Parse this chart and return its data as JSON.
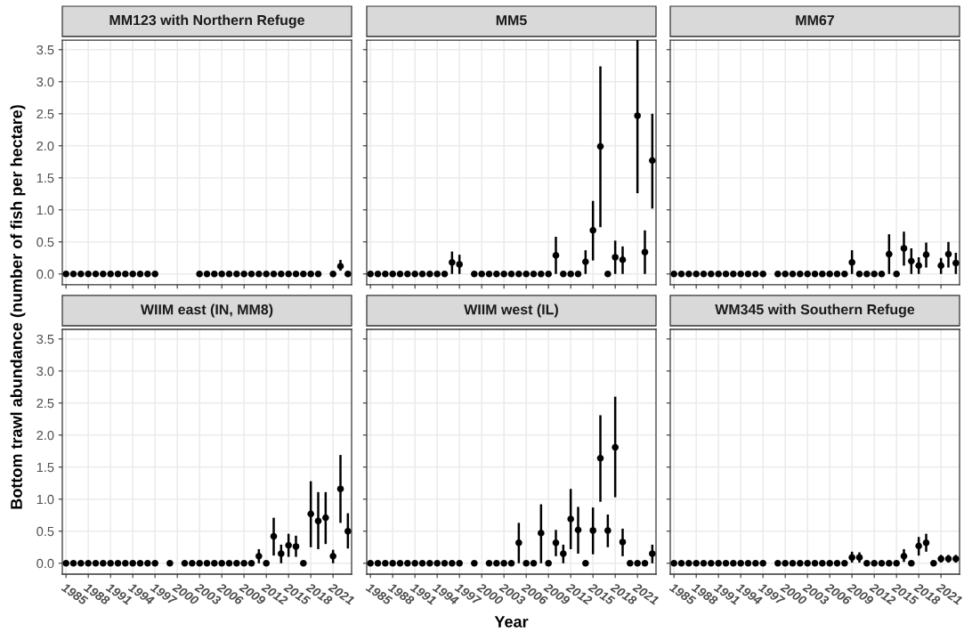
{
  "chart_data": [
    {
      "type": "scatter",
      "title": "MM123 with Northern Refuge",
      "ylabel": "Bottom trawl abundance (number of fish per hectare)",
      "marker": "circle",
      "grid": true,
      "tick_labels": "y",
      "xlim": [
        1984.5,
        2023.5
      ],
      "ylim": [
        -0.17,
        3.65
      ],
      "xticks": [
        1985,
        1988,
        1991,
        1994,
        1997,
        2000,
        2003,
        2006,
        2009,
        2012,
        2015,
        2018,
        2021
      ],
      "yticks": [
        {
          "value": 0,
          "label": "0.0"
        },
        {
          "value": 0.5,
          "label": "0.5"
        },
        {
          "value": 1,
          "label": "1.0"
        },
        {
          "value": 1.5,
          "label": "1.5"
        },
        {
          "value": 2,
          "label": "2.0"
        },
        {
          "value": 2.5,
          "label": "2.5"
        },
        {
          "value": 3,
          "label": "3.0"
        },
        {
          "value": 3.5,
          "label": "3.5"
        }
      ],
      "series": [
        {
          "color": "#000000",
          "x": [
            1985,
            1986,
            1987,
            1988,
            1989,
            1990,
            1991,
            1992,
            1993,
            1994,
            1995,
            1996,
            1997,
            2003,
            2004,
            2005,
            2006,
            2007,
            2008,
            2009,
            2010,
            2011,
            2012,
            2013,
            2014,
            2015,
            2016,
            2017,
            2018,
            2019,
            2021,
            2022,
            2023
          ],
          "values": [
            0,
            0,
            0,
            0,
            0,
            0,
            0,
            0,
            0,
            0,
            0,
            0,
            0,
            0,
            0,
            0,
            0,
            0,
            0,
            0,
            0,
            0,
            0,
            0,
            0,
            0,
            0,
            0,
            0,
            0,
            0,
            0.12,
            0
          ],
          "errors": [
            null,
            null,
            null,
            null,
            null,
            null,
            null,
            null,
            null,
            null,
            null,
            null,
            null,
            null,
            null,
            null,
            null,
            null,
            null,
            null,
            null,
            null,
            null,
            null,
            null,
            null,
            null,
            null,
            null,
            null,
            null,
            [
              0.05,
              0.22
            ],
            null
          ]
        }
      ]
    },
    {
      "type": "scatter",
      "title": "MM5",
      "marker": "circle",
      "grid": true,
      "tick_labels": false,
      "xlim": [
        1984.5,
        2023.5
      ],
      "ylim": [
        -0.17,
        3.65
      ],
      "xticks": [
        1985,
        1988,
        1991,
        1994,
        1997,
        2000,
        2003,
        2006,
        2009,
        2012,
        2015,
        2018,
        2021
      ],
      "yticks": [
        0,
        0.5,
        1,
        1.5,
        2,
        2.5,
        3,
        3.5
      ],
      "series": [
        {
          "color": "#000000",
          "x": [
            1985,
            1986,
            1987,
            1988,
            1989,
            1990,
            1991,
            1992,
            1993,
            1994,
            1995,
            1996,
            1997,
            1999,
            2000,
            2001,
            2002,
            2003,
            2004,
            2005,
            2006,
            2007,
            2008,
            2009,
            2010,
            2011,
            2012,
            2013,
            2014,
            2015,
            2016,
            2017,
            2018,
            2019,
            2021,
            2022,
            2023
          ],
          "values": [
            0,
            0,
            0,
            0,
            0,
            0,
            0,
            0,
            0,
            0,
            0,
            0.18,
            0.15,
            0,
            0,
            0,
            0,
            0,
            0,
            0,
            0,
            0,
            0,
            0,
            0.29,
            0,
            0,
            0,
            0.19,
            0.68,
            1.99,
            0,
            0.26,
            0.22,
            2.47,
            0.34,
            1.77
          ],
          "errors": [
            null,
            null,
            null,
            null,
            null,
            null,
            null,
            null,
            null,
            null,
            null,
            [
              0,
              0.35
            ],
            [
              0,
              0.3
            ],
            null,
            null,
            null,
            null,
            null,
            null,
            null,
            null,
            null,
            null,
            null,
            [
              0,
              0.58
            ],
            null,
            null,
            null,
            [
              0,
              0.37
            ],
            [
              0.21,
              1.14
            ],
            [
              0.73,
              3.24
            ],
            null,
            [
              0,
              0.52
            ],
            [
              0,
              0.43
            ],
            [
              1.26,
              3.66
            ],
            [
              0,
              0.68
            ],
            [
              1.02,
              2.5
            ]
          ]
        }
      ]
    },
    {
      "type": "scatter",
      "title": "MM67",
      "marker": "circle",
      "grid": true,
      "tick_labels": false,
      "xlim": [
        1984.5,
        2023.5
      ],
      "ylim": [
        -0.17,
        3.65
      ],
      "xticks": [
        1985,
        1988,
        1991,
        1994,
        1997,
        2000,
        2003,
        2006,
        2009,
        2012,
        2015,
        2018,
        2021
      ],
      "yticks": [
        0,
        0.5,
        1,
        1.5,
        2,
        2.5,
        3,
        3.5
      ],
      "series": [
        {
          "color": "#000000",
          "x": [
            1985,
            1986,
            1987,
            1988,
            1989,
            1990,
            1991,
            1992,
            1993,
            1994,
            1995,
            1996,
            1997,
            1999,
            2000,
            2001,
            2002,
            2003,
            2004,
            2005,
            2006,
            2007,
            2008,
            2009,
            2010,
            2011,
            2012,
            2013,
            2014,
            2015,
            2016,
            2017,
            2018,
            2019,
            2021,
            2022,
            2023
          ],
          "values": [
            0,
            0,
            0,
            0,
            0,
            0,
            0,
            0,
            0,
            0,
            0,
            0,
            0,
            0,
            0,
            0,
            0,
            0,
            0,
            0,
            0,
            0,
            0,
            0.18,
            0,
            0,
            0,
            0,
            0.31,
            0,
            0.4,
            0.2,
            0.13,
            0.3,
            0.13,
            0.31,
            0.17
          ],
          "errors": [
            null,
            null,
            null,
            null,
            null,
            null,
            null,
            null,
            null,
            null,
            null,
            null,
            null,
            null,
            null,
            null,
            null,
            null,
            null,
            null,
            null,
            null,
            null,
            [
              0,
              0.37
            ],
            null,
            null,
            null,
            null,
            [
              0,
              0.62
            ],
            null,
            [
              0.13,
              0.66
            ],
            [
              0,
              0.4
            ],
            [
              0,
              0.26
            ],
            [
              0.1,
              0.49
            ],
            [
              0,
              0.25
            ],
            [
              0.1,
              0.5
            ],
            [
              0,
              0.33
            ]
          ]
        }
      ]
    },
    {
      "type": "scatter",
      "title": "WIIM east (IN, MM8)",
      "marker": "circle",
      "grid": true,
      "xlim": [
        1984.5,
        2023.5
      ],
      "ylim": [
        -0.17,
        3.65
      ],
      "xticks": [
        1985,
        1988,
        1991,
        1994,
        1997,
        2000,
        2003,
        2006,
        2009,
        2012,
        2015,
        2018,
        2021
      ],
      "yticks": [
        {
          "value": 0,
          "label": "0.0"
        },
        {
          "value": 0.5,
          "label": "0.5"
        },
        {
          "value": 1,
          "label": "1.0"
        },
        {
          "value": 1.5,
          "label": "1.5"
        },
        {
          "value": 2,
          "label": "2.0"
        },
        {
          "value": 2.5,
          "label": "2.5"
        },
        {
          "value": 3,
          "label": "3.0"
        },
        {
          "value": 3.5,
          "label": "3.5"
        }
      ],
      "series": [
        {
          "color": "#000000",
          "x": [
            1985,
            1986,
            1987,
            1988,
            1989,
            1990,
            1991,
            1992,
            1993,
            1994,
            1995,
            1996,
            1997,
            1999,
            2001,
            2002,
            2003,
            2004,
            2005,
            2006,
            2007,
            2008,
            2009,
            2010,
            2011,
            2012,
            2013,
            2014,
            2015,
            2016,
            2017,
            2018,
            2019,
            2020,
            2021,
            2022,
            2023
          ],
          "values": [
            0,
            0,
            0,
            0,
            0,
            0,
            0,
            0,
            0,
            0,
            0,
            0,
            0,
            0,
            0,
            0,
            0,
            0,
            0,
            0,
            0,
            0,
            0,
            0,
            0.11,
            0,
            0.42,
            0.15,
            0.28,
            0.26,
            0,
            0.77,
            0.66,
            0.71,
            0.11,
            1.16,
            0.5
          ],
          "errors": [
            null,
            null,
            null,
            null,
            null,
            null,
            null,
            null,
            null,
            null,
            null,
            null,
            null,
            null,
            null,
            null,
            null,
            null,
            null,
            null,
            null,
            null,
            null,
            null,
            [
              0,
              0.22
            ],
            null,
            [
              0.12,
              0.71
            ],
            [
              0,
              0.29
            ],
            [
              0.1,
              0.46
            ],
            [
              0.1,
              0.43
            ],
            null,
            [
              0.25,
              1.28
            ],
            [
              0.22,
              1.11
            ],
            [
              0.3,
              1.11
            ],
            [
              0,
              0.21
            ],
            [
              0.63,
              1.69
            ],
            [
              0.23,
              0.78
            ]
          ]
        }
      ]
    },
    {
      "type": "scatter",
      "title": "WIIM west (IL)",
      "xlabel": "Year",
      "marker": "circle",
      "grid": true,
      "tick_labels": "x",
      "xlim": [
        1984.5,
        2023.5
      ],
      "ylim": [
        -0.17,
        3.65
      ],
      "xticks": [
        1985,
        1988,
        1991,
        1994,
        1997,
        2000,
        2003,
        2006,
        2009,
        2012,
        2015,
        2018,
        2021
      ],
      "yticks": [
        0,
        0.5,
        1,
        1.5,
        2,
        2.5,
        3,
        3.5
      ],
      "series": [
        {
          "color": "#000000",
          "x": [
            1985,
            1986,
            1987,
            1988,
            1989,
            1990,
            1991,
            1992,
            1993,
            1994,
            1995,
            1996,
            1997,
            1999,
            2001,
            2002,
            2003,
            2004,
            2005,
            2006,
            2007,
            2008,
            2009,
            2010,
            2011,
            2012,
            2013,
            2014,
            2015,
            2016,
            2017,
            2018,
            2019,
            2020,
            2021,
            2022,
            2023
          ],
          "values": [
            0,
            0,
            0,
            0,
            0,
            0,
            0,
            0,
            0,
            0,
            0,
            0,
            0,
            0,
            0,
            0,
            0,
            0,
            0.32,
            0,
            0,
            0.47,
            0,
            0.32,
            0.15,
            0.69,
            0.52,
            0,
            0.51,
            1.64,
            0.51,
            1.81,
            0.33,
            0,
            0,
            0,
            0.15
          ],
          "errors": [
            null,
            null,
            null,
            null,
            null,
            null,
            null,
            null,
            null,
            null,
            null,
            null,
            null,
            null,
            null,
            null,
            null,
            null,
            [
              0,
              0.63
            ],
            null,
            null,
            [
              0,
              0.92
            ],
            null,
            [
              0.11,
              0.52
            ],
            [
              0,
              0.29
            ],
            [
              0.22,
              1.16
            ],
            [
              0.15,
              0.88
            ],
            null,
            [
              0.14,
              0.87
            ],
            [
              0.96,
              2.31
            ],
            [
              0.25,
              0.76
            ],
            [
              1.03,
              2.6
            ],
            [
              0.11,
              0.54
            ],
            null,
            null,
            null,
            [
              0,
              0.29
            ]
          ]
        }
      ]
    },
    {
      "type": "scatter",
      "title": "WM345 with Southern Refuge",
      "marker": "circle",
      "grid": true,
      "tick_labels": "x",
      "xlim": [
        1984.5,
        2023.5
      ],
      "ylim": [
        -0.17,
        3.65
      ],
      "xticks": [
        1985,
        1988,
        1991,
        1994,
        1997,
        2000,
        2003,
        2006,
        2009,
        2012,
        2015,
        2018,
        2021
      ],
      "yticks": [
        0,
        0.5,
        1,
        1.5,
        2,
        2.5,
        3,
        3.5
      ],
      "series": [
        {
          "color": "#000000",
          "x": [
            1985,
            1986,
            1987,
            1988,
            1989,
            1990,
            1991,
            1992,
            1993,
            1994,
            1995,
            1996,
            1997,
            1999,
            2000,
            2001,
            2002,
            2003,
            2004,
            2005,
            2006,
            2007,
            2008,
            2009,
            2010,
            2011,
            2012,
            2013,
            2014,
            2015,
            2016,
            2017,
            2018,
            2019,
            2020,
            2021,
            2022,
            2023
          ],
          "values": [
            0,
            0,
            0,
            0,
            0,
            0,
            0,
            0,
            0,
            0,
            0,
            0,
            0,
            0,
            0,
            0,
            0,
            0,
            0,
            0,
            0,
            0,
            0,
            0.09,
            0.09,
            0,
            0,
            0,
            0,
            0,
            0.11,
            0,
            0.27,
            0.32,
            0,
            0.07,
            0.07,
            0.07
          ],
          "errors": [
            null,
            null,
            null,
            null,
            null,
            null,
            null,
            null,
            null,
            null,
            null,
            null,
            null,
            null,
            null,
            null,
            null,
            null,
            null,
            null,
            null,
            null,
            null,
            [
              0.01,
              0.18
            ],
            [
              0.01,
              0.17
            ],
            null,
            null,
            null,
            null,
            null,
            [
              0.02,
              0.22
            ],
            null,
            [
              0.12,
              0.41
            ],
            [
              0.18,
              0.46
            ],
            null,
            [
              0.01,
              0.13
            ],
            [
              0.01,
              0.13
            ],
            [
              0.01,
              0.13
            ]
          ]
        }
      ]
    }
  ]
}
